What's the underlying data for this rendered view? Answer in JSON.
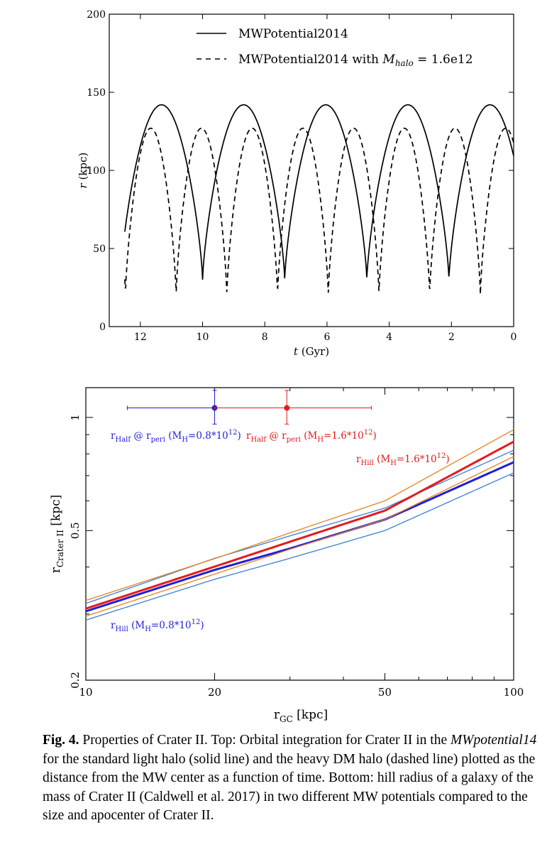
{
  "chart_data": [
    {
      "type": "line",
      "xlabel": "t",
      "xlabel_unit": "(Gyr)",
      "ylabel": "r",
      "ylabel_unit": "(kpc)",
      "xlim": [
        13.0,
        0.0
      ],
      "ylim": [
        0,
        200
      ],
      "x_reversed": true,
      "x_ticks": [
        12,
        10,
        8,
        6,
        4,
        2,
        0
      ],
      "y_ticks": [
        0,
        50,
        100,
        150,
        200
      ],
      "legend_position": "top-right",
      "series": [
        {
          "name": "MWPotential2014",
          "style": "solid",
          "color": "#000000",
          "x_start": 12.5,
          "x_end": 0.0,
          "peri": 30,
          "apo": 142,
          "period_gyr": 2.64,
          "peri_times": [
            10.0,
            7.36,
            4.72,
            2.08
          ],
          "value_at_start": 58,
          "value_at_end": 117
        },
        {
          "name": "MWPotential2014 with",
          "name_math": "M",
          "name_math_sub": "halo",
          "name_math_rest": " = 1.6e12",
          "style": "dashed",
          "color": "#000000",
          "x_start": 12.5,
          "x_end": 0.0,
          "peri": 20,
          "apo": 127,
          "period_gyr": 1.63,
          "peri_times": [
            10.85,
            9.22,
            7.59,
            5.96,
            4.33,
            2.7,
            1.07
          ],
          "value_at_start": 28,
          "value_at_end": 112
        }
      ]
    },
    {
      "type": "line",
      "xlabel": "r",
      "xlabel_sub": "GC",
      "xlabel_unit": "[kpc]",
      "ylabel": "r",
      "ylabel_sub": "Crater II",
      "ylabel_unit": "[kpc]",
      "x_scale": "log",
      "y_scale": "log",
      "xlim": [
        10,
        100
      ],
      "ylim": [
        0.2,
        1.2
      ],
      "x_ticks": [
        10,
        20,
        50,
        100
      ],
      "y_ticks": [
        0.2,
        0.5,
        1
      ],
      "series": [
        {
          "name": "rHill MH=0.8e12 central",
          "color": "#1f1fd6",
          "width": "thick",
          "x": [
            10,
            20,
            30,
            50,
            100
          ],
          "y": [
            0.305,
            0.393,
            0.448,
            0.535,
            0.76
          ]
        },
        {
          "name": "rHill MH=0.8e12 upper",
          "color": "#3a7fd8",
          "width": "thin",
          "x": [
            10,
            20,
            30,
            50,
            100
          ],
          "y": [
            0.32,
            0.422,
            0.484,
            0.574,
            0.818
          ]
        },
        {
          "name": "rHill MH=0.8e12 lower",
          "color": "#3a7fd8",
          "width": "thin",
          "x": [
            10,
            20,
            30,
            50,
            100
          ],
          "y": [
            0.289,
            0.371,
            0.422,
            0.5,
            0.712
          ]
        },
        {
          "name": "rHill MH=1.6e12 central",
          "color": "#e21b1b",
          "width": "thick",
          "x": [
            10,
            20,
            30,
            50,
            100
          ],
          "y": [
            0.31,
            0.401,
            0.467,
            0.565,
            0.862
          ]
        },
        {
          "name": "rHill MH=1.6e12 upper",
          "color": "#e8801a",
          "width": "thin",
          "x": [
            10,
            20,
            30,
            50,
            100
          ],
          "y": [
            0.326,
            0.421,
            0.493,
            0.6,
            0.928
          ]
        },
        {
          "name": "rHill MH=1.6e12 lower",
          "color": "#e8801a",
          "width": "thin",
          "x": [
            10,
            20,
            30,
            50,
            100
          ],
          "y": [
            0.296,
            0.383,
            0.446,
            0.535,
            0.787
          ]
        }
      ],
      "points": [
        {
          "label": "rHalf @ rperi (MH=0.8e12)",
          "color": "#1f1fd6",
          "x": 20,
          "y": 1.06,
          "xerr": [
            12.5,
            29.5
          ],
          "yerr": [
            0.96,
            1.18
          ]
        },
        {
          "label": "rHalf @ rperi (MH=1.6e12)",
          "color": "#e21b1b",
          "x": 29.5,
          "y": 1.06,
          "xerr": [
            20,
            46.5
          ],
          "yerr": [
            0.96,
            1.18
          ]
        }
      ],
      "annotations": [
        {
          "id": "half08",
          "main": "r",
          "sub": "Half",
          "mid": " @ r",
          "sub2": "peri",
          "tail": " (M",
          "sub3": "H",
          "tail2": "=0.8*10",
          "sup": "12",
          "end": ")",
          "color": "#1f1fd6"
        },
        {
          "id": "half16",
          "main": "r",
          "sub": "Half",
          "mid": " @ r",
          "sub2": "peri",
          "tail": " (M",
          "sub3": "H",
          "tail2": "=1.6*10",
          "sup": "12",
          "end": ")",
          "color": "#e21b1b"
        },
        {
          "id": "hill16",
          "main": "r",
          "sub": "Hill",
          "tail": " (M",
          "sub3": "H",
          "tail2": "=1.6*10",
          "sup": "12",
          "end": ")",
          "color": "#e21b1b"
        },
        {
          "id": "hill08",
          "main": "r",
          "sub": "Hill",
          "tail": " (M",
          "sub3": "H",
          "tail2": "=0.8*10",
          "sup": "12",
          "end": ")",
          "color": "#1f1fd6"
        }
      ]
    }
  ],
  "caption": {
    "label": "Fig. 4.",
    "text1": " Properties of Crater II. Top: Orbital integration for Crater II in the ",
    "italic": "MWpotential14",
    "text2": " for the standard light halo (solid line) and the heavy DM halo (dashed line) plotted as the distance from the MW center as a function of time. Bottom: hill radius of a galaxy of the mass of Crater II (Caldwell et al. 2017) in two different MW potentials compared to the size and apocenter of Crater II."
  }
}
